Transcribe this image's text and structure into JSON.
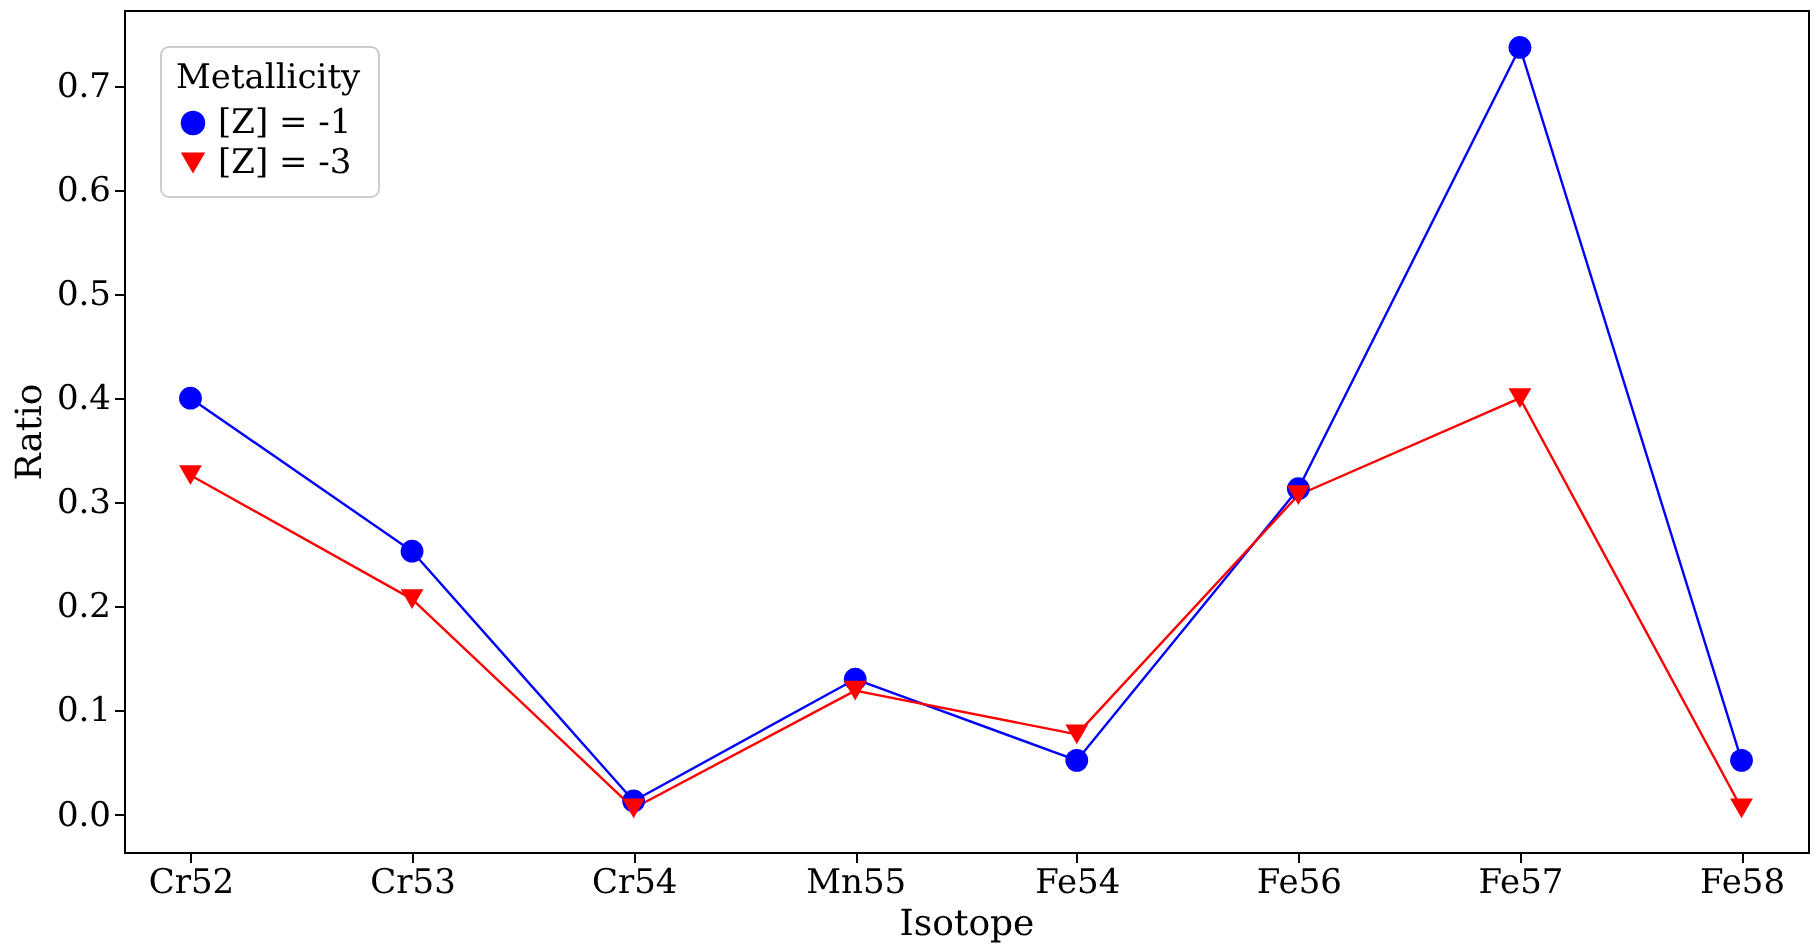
{
  "chart_data": {
    "type": "line",
    "xlabel": "Isotope",
    "ylabel": "Ratio",
    "legend_title": "Metallicity",
    "categories": [
      "Cr52",
      "Cr53",
      "Cr54",
      "Mn55",
      "Fe54",
      "Fe56",
      "Fe57",
      "Fe58"
    ],
    "series": [
      {
        "name": "[Z] = -1",
        "color": "#0000ff",
        "marker": "circle",
        "values": [
          0.4,
          0.253,
          0.013,
          0.13,
          0.052,
          0.313,
          0.737,
          0.052
        ]
      },
      {
        "name": "[Z] = -3",
        "color": "#ff0000",
        "marker": "triangle",
        "values": [
          0.326,
          0.207,
          0.006,
          0.119,
          0.077,
          0.307,
          0.4,
          0.006
        ]
      }
    ],
    "ylim": [
      -0.036,
      0.773
    ],
    "yticks": [
      {
        "value": 0,
        "label": "0.0"
      },
      0.1,
      0.2,
      0.3,
      0.4,
      0.5,
      0.6,
      0.7
    ],
    "grid": false,
    "legend": "top left",
    "line_style": "solid"
  }
}
